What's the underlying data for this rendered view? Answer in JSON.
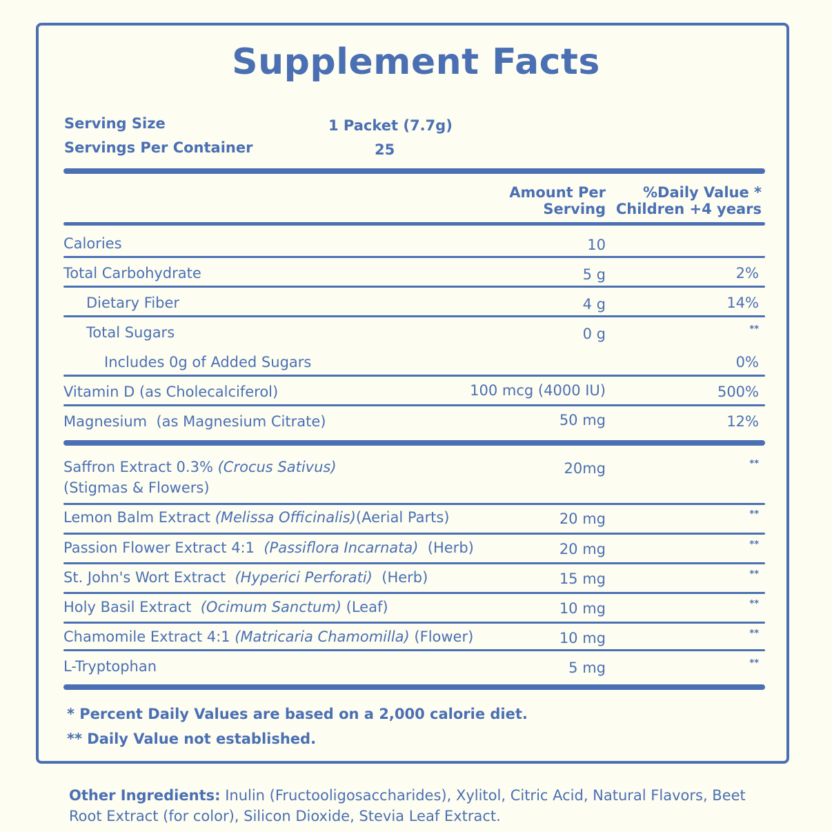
{
  "title": "Supplement Facts",
  "serving": {
    "size_label": "Serving Size",
    "size_value": "1 Packet (7.7g)",
    "per_container_label": "Servings Per Container",
    "per_container_value": "25"
  },
  "header": {
    "amount_line1": "Amount Per",
    "amount_line2": "Serving",
    "dv_line1": "%Daily Value *",
    "dv_line2": "Children +4 years"
  },
  "nutrients": [
    {
      "name": "Calories",
      "amount": "10",
      "dv": ""
    },
    {
      "name": "Total Carbohydrate",
      "amount": "5 g",
      "dv": "2%"
    },
    {
      "name": "Dietary Fiber",
      "amount": "4 g",
      "dv": "14%"
    },
    {
      "name": "Total Sugars",
      "amount": "0 g",
      "dv": "**"
    },
    {
      "name": "Includes 0g of Added Sugars",
      "amount": "",
      "dv": "0%"
    },
    {
      "name": "Vitamin D (as Cholecalciferol)",
      "amount": "100 mcg (4000 IU)",
      "dv": "500%"
    },
    {
      "name": "Magnesium  (as Magnesium Citrate)",
      "amount": "50 mg",
      "dv": "12%"
    }
  ],
  "botanicals": [
    {
      "name": "Saffron Extract 0.3%",
      "latin": "(Crocus Sativus)",
      "part": "(Stigmas & Flowers)",
      "amount": "20mg",
      "dv": "**"
    },
    {
      "name": "Lemon Balm Extract",
      "latin": "(Melissa Officinalis)",
      "part": "(Aerial Parts)",
      "amount": "20 mg",
      "dv": "**"
    },
    {
      "name": "Passion Flower Extract 4:1",
      "latin": "(Passiflora Incarnata)",
      "part": "(Herb)",
      "amount": "20 mg",
      "dv": "**"
    },
    {
      "name": "St. John's Wort Extract",
      "latin": "(Hyperici Perforati)",
      "part": "(Herb)",
      "amount": "15 mg",
      "dv": "**"
    },
    {
      "name": "Holy Basil Extract",
      "latin": "(Ocimum Sanctum)",
      "part": "(Leaf)",
      "amount": "10 mg",
      "dv": "**"
    },
    {
      "name": "Chamomile Extract 4:1",
      "latin": "(Matricaria Chamomilla)",
      "part": "(Flower)",
      "amount": "10 mg",
      "dv": "**"
    },
    {
      "name": "L-Tryptophan",
      "latin": "",
      "part": "",
      "amount": "5 mg",
      "dv": "**"
    }
  ],
  "footnotes": {
    "dv_basis": "* Percent Daily Values are based on a 2,000 calorie diet.",
    "not_established": "** Daily Value not established."
  },
  "other_ingredients": {
    "label": "Other Ingredients:",
    "text": " Inulin (Fructooligosaccharides), Xylitol, Citric Acid, Natural Flavors, Beet Root Extract (for color), Silicon Dioxide, Stevia Leaf Extract."
  },
  "colors": {
    "accent": "#4a6fb3",
    "background": "#fdfdf1"
  }
}
